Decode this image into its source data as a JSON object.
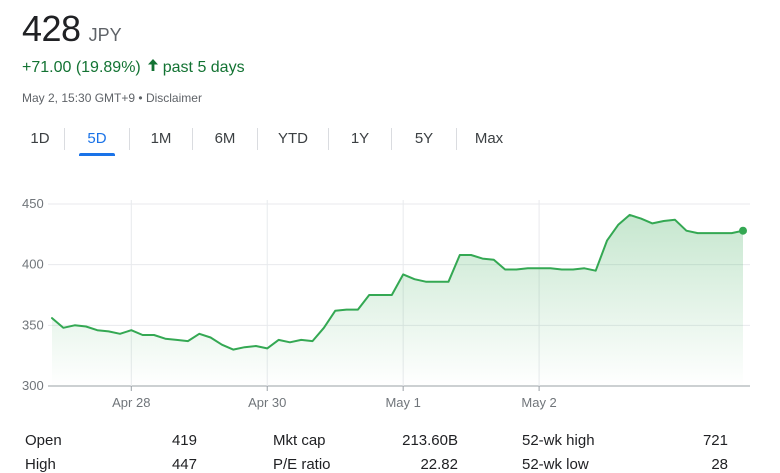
{
  "quote": {
    "price": "428",
    "currency": "JPY",
    "change": "+71.00 (19.89%)",
    "period": "past 5 days",
    "timestamp": "May 2, 15:30 GMT+9",
    "separator": " • ",
    "disclaimer": "Disclaimer"
  },
  "tabs": [
    {
      "label": "1D",
      "active": false
    },
    {
      "label": "5D",
      "active": true
    },
    {
      "label": "1M",
      "active": false
    },
    {
      "label": "6M",
      "active": false
    },
    {
      "label": "YTD",
      "active": false
    },
    {
      "label": "1Y",
      "active": false
    },
    {
      "label": "5Y",
      "active": false
    },
    {
      "label": "Max",
      "active": false
    }
  ],
  "colors": {
    "up": "#137333",
    "line": "#34a853",
    "active_tab": "#1a73e8"
  },
  "chart_data": {
    "type": "area",
    "ylim": [
      300,
      450
    ],
    "yticks": [
      300,
      350,
      400,
      450
    ],
    "xtick_labels": [
      "Apr 28",
      "Apr 30",
      "May 1",
      "May 2"
    ],
    "xtick_positions": [
      7,
      19,
      31,
      43
    ],
    "grid": true,
    "series": [
      {
        "values": [
          356,
          348,
          350,
          349,
          346,
          345,
          343,
          346,
          342,
          342,
          339,
          338,
          337,
          343,
          340,
          334,
          330,
          332,
          333,
          331,
          338,
          336,
          338,
          337,
          348,
          362,
          363,
          363,
          375,
          375,
          375,
          392,
          388,
          386,
          386,
          386,
          408,
          408,
          405,
          404,
          396,
          396,
          397,
          397,
          397,
          396,
          396,
          397,
          395,
          420,
          433,
          441,
          438,
          434,
          436,
          437,
          428,
          426,
          426,
          426,
          426,
          428
        ]
      }
    ]
  },
  "stats": [
    {
      "label": "Open",
      "value": "419"
    },
    {
      "label": "High",
      "value": "447"
    },
    {
      "label": "Mkt cap",
      "value": "213.60B"
    },
    {
      "label": "P/E ratio",
      "value": "22.82"
    },
    {
      "label": "52-wk high",
      "value": "721"
    },
    {
      "label": "52-wk low",
      "value": "28"
    }
  ]
}
